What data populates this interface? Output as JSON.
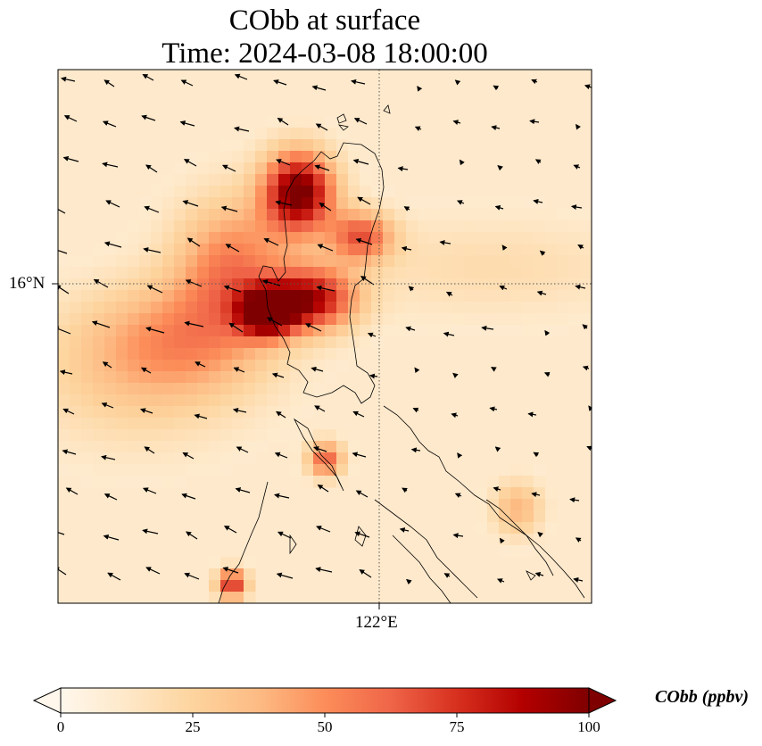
{
  "title": {
    "line1": "CObb at surface",
    "line2": "Time: 2024-03-08 18:00:00"
  },
  "axes": {
    "lat_label": "16°N",
    "lon_label": "122°E"
  },
  "colorbar": {
    "label": "CObb (ppbv)",
    "ticks": [
      "0",
      "25",
      "50",
      "75",
      "100"
    ],
    "range": [
      0,
      100
    ],
    "extend": "both",
    "colormap": [
      "#fff7ec",
      "#fee8c8",
      "#fdd49e",
      "#fdbb84",
      "#fc8d59",
      "#ef6548",
      "#d7301f",
      "#b30000",
      "#7f0000"
    ]
  },
  "map": {
    "field": "CObb",
    "units": "ppbv",
    "gridlines": "dotted",
    "wind_vectors": true,
    "coastlines": true
  }
}
